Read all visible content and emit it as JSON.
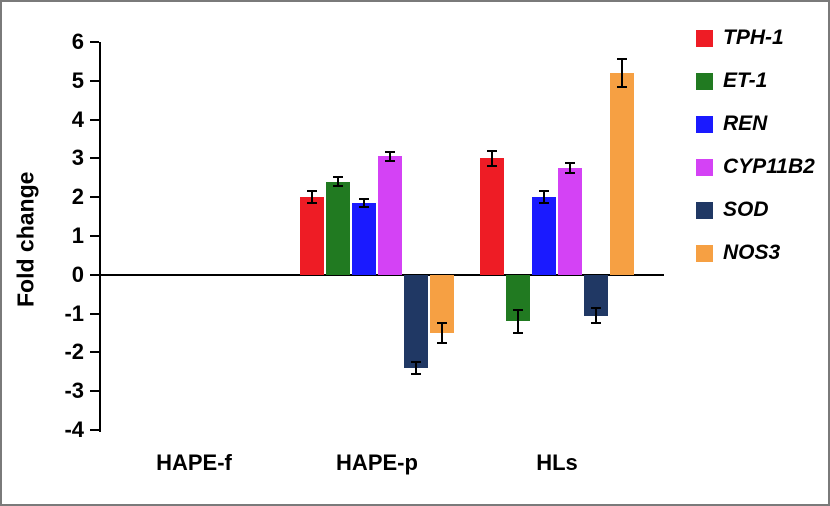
{
  "chart_data": {
    "type": "bar",
    "ylabel": "Fold change",
    "ylim": [
      -4,
      6
    ],
    "ytick_step": 1,
    "grid": false,
    "legend_position": "right",
    "error_bars": true,
    "categories": [
      "HAPE-f",
      "HAPE-p",
      "HLs"
    ],
    "series": [
      {
        "name": "TPH-1",
        "color": "#ee1c25",
        "values": [
          0,
          2.0,
          3.0
        ],
        "errors": [
          0,
          0.15,
          0.2
        ]
      },
      {
        "name": "ET-1",
        "color": "#217a21",
        "values": [
          0,
          2.4,
          -1.2
        ],
        "errors": [
          0,
          0.12,
          0.3
        ]
      },
      {
        "name": "REN",
        "color": "#1a1aff",
        "values": [
          0,
          1.85,
          2.0
        ],
        "errors": [
          0,
          0.1,
          0.15
        ]
      },
      {
        "name": "CYP11B2",
        "color": "#d442f5",
        "values": [
          0,
          3.05,
          2.75
        ],
        "errors": [
          0,
          0.12,
          0.12
        ]
      },
      {
        "name": "SOD",
        "color": "#203864",
        "values": [
          0,
          -2.4,
          -1.05
        ],
        "errors": [
          0,
          0.15,
          0.2
        ]
      },
      {
        "name": "NOS3",
        "color": "#f6a043",
        "values": [
          0,
          -1.5,
          5.2
        ],
        "errors": [
          0,
          0.25,
          0.35
        ]
      }
    ]
  }
}
